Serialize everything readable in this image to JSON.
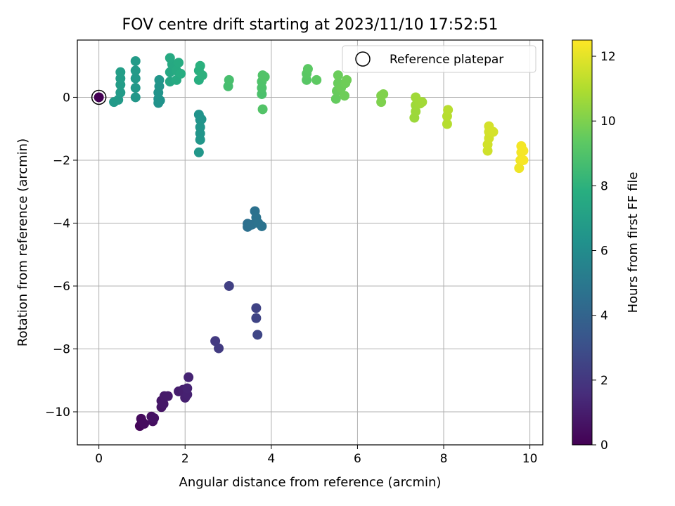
{
  "chart_data": {
    "type": "scatter",
    "title": "FOV centre drift starting at 2023/11/10 17:52:51",
    "xlabel": "Angular distance from reference (arcmin)",
    "ylabel": "Rotation from reference (arcmin)",
    "xlim": [
      -0.5,
      10.3
    ],
    "ylim": [
      -11.05,
      1.82
    ],
    "xticks": [
      0,
      2,
      4,
      6,
      8,
      10
    ],
    "xtick_labels": [
      "0",
      "2",
      "4",
      "6",
      "8",
      "10"
    ],
    "yticks": [
      -10,
      -8,
      -6,
      -4,
      -2,
      0
    ],
    "ytick_labels": [
      "−10",
      "−8",
      "−6",
      "−4",
      "−2",
      "0"
    ],
    "grid": true,
    "colormap": "viridis",
    "colorbar": {
      "label": "Hours from first FF file",
      "range": [
        0,
        12.5
      ],
      "ticks": [
        0,
        2,
        4,
        6,
        8,
        10,
        12
      ],
      "tick_labels": [
        "0",
        "2",
        "4",
        "6",
        "8",
        "10",
        "12"
      ]
    },
    "legend": {
      "label": "Reference platepar",
      "position": "top-right"
    },
    "reference_point": {
      "x": 0,
      "y": 0
    },
    "points": [
      {
        "x": 0.95,
        "y": -10.45,
        "h": 0.2
      },
      {
        "x": 1.0,
        "y": -10.3,
        "h": 0.3
      },
      {
        "x": 0.98,
        "y": -10.22,
        "h": 0.35
      },
      {
        "x": 1.05,
        "y": -10.38,
        "h": 0.4
      },
      {
        "x": 1.25,
        "y": -10.3,
        "h": 0.5
      },
      {
        "x": 1.22,
        "y": -10.15,
        "h": 0.55
      },
      {
        "x": 1.28,
        "y": -10.2,
        "h": 0.6
      },
      {
        "x": 1.45,
        "y": -9.85,
        "h": 0.7
      },
      {
        "x": 1.45,
        "y": -9.65,
        "h": 0.75
      },
      {
        "x": 1.5,
        "y": -9.75,
        "h": 0.8
      },
      {
        "x": 1.52,
        "y": -9.5,
        "h": 0.85
      },
      {
        "x": 1.6,
        "y": -9.5,
        "h": 0.9
      },
      {
        "x": 1.85,
        "y": -9.35,
        "h": 1.0
      },
      {
        "x": 1.95,
        "y": -9.3,
        "h": 1.05
      },
      {
        "x": 2.0,
        "y": -9.55,
        "h": 1.1
      },
      {
        "x": 2.05,
        "y": -9.45,
        "h": 1.15
      },
      {
        "x": 2.05,
        "y": -9.25,
        "h": 1.2
      },
      {
        "x": 2.08,
        "y": -8.9,
        "h": 1.25
      },
      {
        "x": 2.7,
        "y": -7.75,
        "h": 2.1
      },
      {
        "x": 2.78,
        "y": -7.98,
        "h": 2.15
      },
      {
        "x": 3.02,
        "y": -6.0,
        "h": 2.35
      },
      {
        "x": 3.65,
        "y": -6.7,
        "h": 2.5
      },
      {
        "x": 3.65,
        "y": -7.02,
        "h": 2.55
      },
      {
        "x": 3.68,
        "y": -7.55,
        "h": 2.6
      },
      {
        "x": 3.45,
        "y": -4.02,
        "h": 4.55
      },
      {
        "x": 3.45,
        "y": -4.12,
        "h": 4.6
      },
      {
        "x": 3.55,
        "y": -4.05,
        "h": 4.62
      },
      {
        "x": 3.62,
        "y": -3.62,
        "h": 4.65
      },
      {
        "x": 3.65,
        "y": -3.82,
        "h": 4.7
      },
      {
        "x": 3.7,
        "y": -4.0,
        "h": 4.72
      },
      {
        "x": 3.78,
        "y": -4.1,
        "h": 4.75
      },
      {
        "x": 2.32,
        "y": -0.55,
        "h": 6.35
      },
      {
        "x": 2.35,
        "y": -0.72,
        "h": 6.4
      },
      {
        "x": 2.38,
        "y": -0.7,
        "h": 6.42
      },
      {
        "x": 2.35,
        "y": -0.95,
        "h": 6.45
      },
      {
        "x": 2.35,
        "y": -1.15,
        "h": 6.47
      },
      {
        "x": 2.35,
        "y": -1.35,
        "h": 6.5
      },
      {
        "x": 2.32,
        "y": -1.75,
        "h": 6.55
      },
      {
        "x": 1.38,
        "y": -0.05,
        "h": 6.3
      },
      {
        "x": 1.38,
        "y": -0.18,
        "h": 6.32
      },
      {
        "x": 1.42,
        "y": -0.1,
        "h": 6.35
      },
      {
        "x": 1.38,
        "y": 0.15,
        "h": 6.4
      },
      {
        "x": 1.4,
        "y": 0.35,
        "h": 6.45
      },
      {
        "x": 1.4,
        "y": 0.55,
        "h": 6.5
      },
      {
        "x": 0.85,
        "y": 0.0,
        "h": 6.6
      },
      {
        "x": 0.85,
        "y": 0.3,
        "h": 6.65
      },
      {
        "x": 0.85,
        "y": 0.6,
        "h": 6.7
      },
      {
        "x": 0.85,
        "y": 0.85,
        "h": 6.75
      },
      {
        "x": 0.85,
        "y": 1.15,
        "h": 6.8
      },
      {
        "x": 0.35,
        "y": -0.15,
        "h": 6.7
      },
      {
        "x": 0.45,
        "y": -0.08,
        "h": 6.75
      },
      {
        "x": 0.5,
        "y": 0.15,
        "h": 6.8
      },
      {
        "x": 0.5,
        "y": 0.4,
        "h": 6.85
      },
      {
        "x": 0.5,
        "y": 0.6,
        "h": 6.9
      },
      {
        "x": 0.5,
        "y": 0.8,
        "h": 6.95
      },
      {
        "x": 1.65,
        "y": 0.5,
        "h": 7.4
      },
      {
        "x": 1.65,
        "y": 0.8,
        "h": 7.45
      },
      {
        "x": 1.7,
        "y": 1.05,
        "h": 7.5
      },
      {
        "x": 1.65,
        "y": 1.25,
        "h": 7.55
      },
      {
        "x": 1.8,
        "y": 0.55,
        "h": 7.6
      },
      {
        "x": 1.8,
        "y": 0.85,
        "h": 7.62
      },
      {
        "x": 1.85,
        "y": 1.1,
        "h": 7.65
      },
      {
        "x": 1.9,
        "y": 0.75,
        "h": 7.68
      },
      {
        "x": 2.32,
        "y": 0.55,
        "h": 7.8
      },
      {
        "x": 2.32,
        "y": 0.85,
        "h": 7.85
      },
      {
        "x": 2.35,
        "y": 1.0,
        "h": 7.9
      },
      {
        "x": 2.4,
        "y": 0.7,
        "h": 7.95
      },
      {
        "x": 3.0,
        "y": 0.35,
        "h": 8.7
      },
      {
        "x": 3.02,
        "y": 0.55,
        "h": 8.75
      },
      {
        "x": 3.78,
        "y": 0.1,
        "h": 8.85
      },
      {
        "x": 3.78,
        "y": 0.3,
        "h": 8.9
      },
      {
        "x": 3.78,
        "y": 0.5,
        "h": 8.95
      },
      {
        "x": 3.8,
        "y": 0.7,
        "h": 9.0
      },
      {
        "x": 3.85,
        "y": 0.65,
        "h": 9.02
      },
      {
        "x": 3.8,
        "y": -0.38,
        "h": 9.05
      },
      {
        "x": 4.82,
        "y": 0.55,
        "h": 9.2
      },
      {
        "x": 4.82,
        "y": 0.75,
        "h": 9.25
      },
      {
        "x": 4.85,
        "y": 0.9,
        "h": 9.3
      },
      {
        "x": 5.05,
        "y": 0.55,
        "h": 9.35
      },
      {
        "x": 5.5,
        "y": -0.05,
        "h": 9.5
      },
      {
        "x": 5.52,
        "y": 0.2,
        "h": 9.55
      },
      {
        "x": 5.55,
        "y": 0.45,
        "h": 9.6
      },
      {
        "x": 5.55,
        "y": 0.7,
        "h": 9.62
      },
      {
        "x": 5.62,
        "y": 0.3,
        "h": 9.65
      },
      {
        "x": 5.7,
        "y": 0.05,
        "h": 9.68
      },
      {
        "x": 5.72,
        "y": 0.45,
        "h": 9.7
      },
      {
        "x": 5.75,
        "y": 0.55,
        "h": 9.72
      },
      {
        "x": 6.55,
        "y": -0.15,
        "h": 10.0
      },
      {
        "x": 6.55,
        "y": 0.05,
        "h": 10.02
      },
      {
        "x": 6.6,
        "y": 0.1,
        "h": 10.05
      },
      {
        "x": 7.32,
        "y": -0.65,
        "h": 10.6
      },
      {
        "x": 7.35,
        "y": -0.45,
        "h": 10.62
      },
      {
        "x": 7.35,
        "y": -0.25,
        "h": 10.65
      },
      {
        "x": 7.35,
        "y": 0.0,
        "h": 10.68
      },
      {
        "x": 7.45,
        "y": -0.2,
        "h": 10.7
      },
      {
        "x": 7.5,
        "y": -0.15,
        "h": 10.72
      },
      {
        "x": 8.08,
        "y": -0.85,
        "h": 11.1
      },
      {
        "x": 8.08,
        "y": -0.6,
        "h": 11.12
      },
      {
        "x": 8.1,
        "y": -0.4,
        "h": 11.15
      },
      {
        "x": 9.02,
        "y": -1.7,
        "h": 11.6
      },
      {
        "x": 9.02,
        "y": -1.5,
        "h": 11.62
      },
      {
        "x": 9.05,
        "y": -1.3,
        "h": 11.65
      },
      {
        "x": 9.05,
        "y": -1.1,
        "h": 11.68
      },
      {
        "x": 9.05,
        "y": -0.92,
        "h": 11.7
      },
      {
        "x": 9.15,
        "y": -1.1,
        "h": 11.72
      },
      {
        "x": 9.75,
        "y": -2.25,
        "h": 12.2
      },
      {
        "x": 9.78,
        "y": -2.0,
        "h": 12.25
      },
      {
        "x": 9.8,
        "y": -1.75,
        "h": 12.3
      },
      {
        "x": 9.8,
        "y": -1.55,
        "h": 12.32
      },
      {
        "x": 9.85,
        "y": -1.7,
        "h": 12.35
      },
      {
        "x": 9.85,
        "y": -2.0,
        "h": 12.38
      }
    ]
  }
}
